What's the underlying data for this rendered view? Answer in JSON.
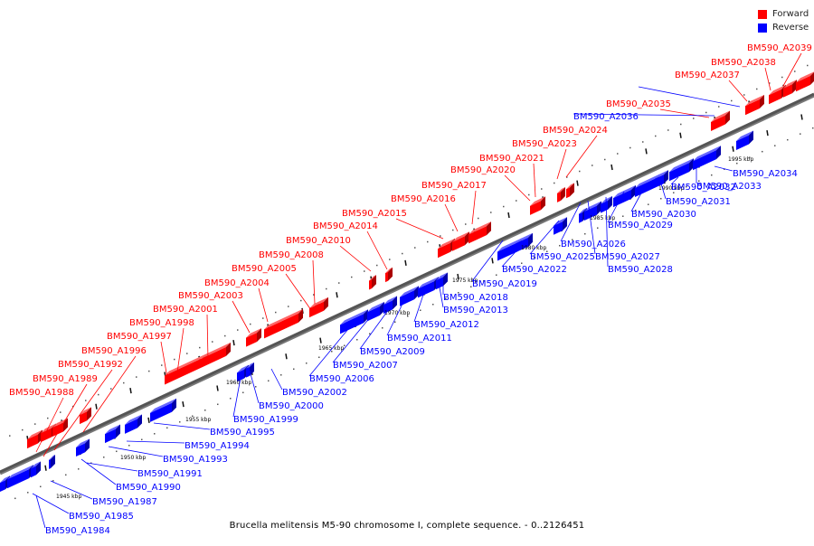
{
  "legend": {
    "forward_label": "Forward",
    "reverse_label": "Reverse",
    "forward_color": "#ff0000",
    "reverse_color": "#0000ff"
  },
  "caption": "Brucella melitensis M5-90 chromosome I, complete sequence. - 0..2126451",
  "kbp_labels": [
    "1945 kbp",
    "1950 kbp",
    "1955 kbp",
    "1960 kbp",
    "1965 kbp",
    "1970 kbp",
    "1975 kbp",
    "1980 kbp",
    "1985 kbp",
    "1990 kbp",
    "1995 kbp"
  ],
  "forward_genes": [
    "BM590_A1988",
    "BM590_A1989",
    "BM590_A1992",
    "BM590_A1996",
    "BM590_A1997",
    "BM590_A1998",
    "BM590_A2001",
    "BM590_A2003",
    "BM590_A2004",
    "BM590_A2005",
    "BM590_A2008",
    "BM590_A2010",
    "BM590_A2014",
    "BM590_A2015",
    "BM590_A2016",
    "BM590_A2017",
    "BM590_A2020",
    "BM590_A2021",
    "BM590_A2023",
    "BM590_A2024",
    "BM590_A2035",
    "BM590_A2037",
    "BM590_A2038",
    "BM590_A2039"
  ],
  "reverse_genes": [
    "BM590_A1984",
    "BM590_A1985",
    "BM590_A1987",
    "BM590_A1990",
    "BM590_A1991",
    "BM590_A1993",
    "BM590_A1994",
    "BM590_A1995",
    "BM590_A1999",
    "BM590_A2000",
    "BM590_A2002",
    "BM590_A2006",
    "BM590_A2007",
    "BM590_A2009",
    "BM590_A2011",
    "BM590_A2012",
    "BM590_A2013",
    "BM590_A2018",
    "BM590_A2019",
    "BM590_A2022",
    "BM590_A2025",
    "BM590_A2026",
    "BM590_A2027",
    "BM590_A2028",
    "BM590_A2029",
    "BM590_A2030",
    "BM590_A2031",
    "BM590_A2032",
    "BM590_A2033",
    "BM590_A2034",
    "BM590_A2036"
  ]
}
